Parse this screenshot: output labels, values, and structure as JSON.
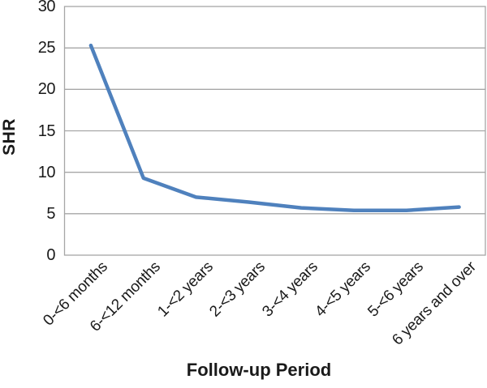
{
  "chart_data": {
    "type": "line",
    "title": "",
    "xlabel": "Follow-up Period",
    "ylabel": "SHR",
    "categories": [
      "0-<6 months",
      "6-<12 months",
      "1-<2 years",
      "2-<3 years",
      "3-<4 years",
      "4-<5 years",
      "5-<6 years",
      "6 years and over"
    ],
    "series": [
      {
        "name": "SHR",
        "values": [
          25.3,
          9.3,
          7.0,
          6.4,
          5.7,
          5.4,
          5.4,
          5.8
        ]
      }
    ],
    "ylim": [
      0,
      30
    ],
    "yticks": [
      0,
      5,
      10,
      15,
      20,
      25,
      30
    ],
    "grid": "horizontal",
    "legend": "none",
    "line_color": "#4F81BD",
    "gridline_color": "#A6A6A6",
    "text_color": "#1A1A1A"
  }
}
